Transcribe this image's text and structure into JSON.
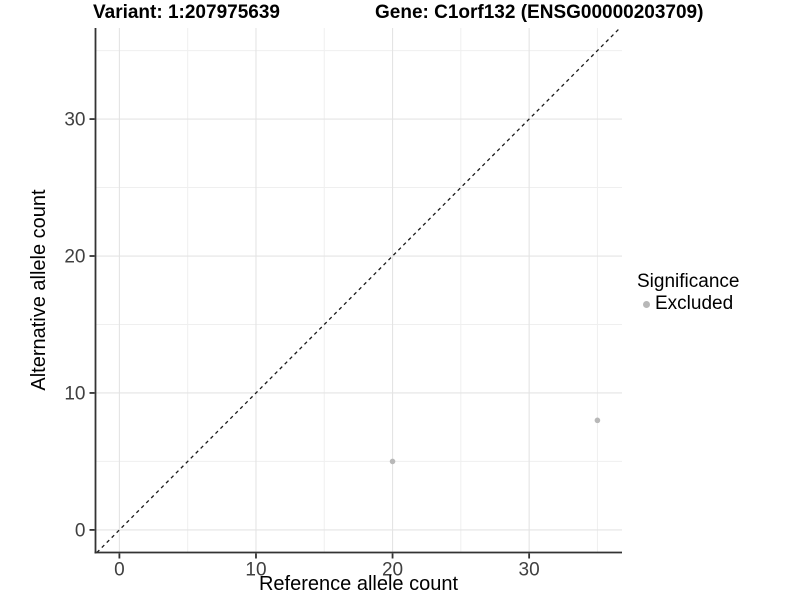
{
  "chart_data": {
    "type": "scatter",
    "title_left": "Variant: 1:207975639",
    "title_right": "Gene: C1orf132 (ENSG00000203709)",
    "xlabel": "Reference allele count",
    "ylabel": "Alternative allele count",
    "xlim": [
      -1.75,
      36.8
    ],
    "ylim": [
      -1.65,
      36.65
    ],
    "x_major_ticks": [
      0,
      10,
      20,
      30
    ],
    "y_major_ticks": [
      0,
      10,
      20,
      30
    ],
    "x_minor_ticks": [
      5,
      15,
      25,
      35
    ],
    "y_minor_ticks": [
      5,
      15,
      25,
      35
    ],
    "grid": "major+minor",
    "series": [
      {
        "name": "Excluded",
        "color": "#b8b8b8",
        "points": [
          {
            "x": 20,
            "y": 5
          },
          {
            "x": 35,
            "y": 8
          }
        ]
      }
    ],
    "reference_line": {
      "type": "identity",
      "slope": 1,
      "intercept": 0,
      "style": "dashed",
      "color": "#1a1a1a"
    },
    "legend": {
      "title": "Significance",
      "position": "right",
      "items": [
        {
          "label": "Excluded",
          "color": "#b8b8b8"
        }
      ]
    }
  },
  "colors": {
    "background": "#ffffff",
    "axis_line": "#333333",
    "tick_mark": "#333333",
    "tick_label": "#404040",
    "grid_major": "#e4e4e4",
    "grid_minor": "#efefef",
    "point": "#b8b8b8"
  }
}
